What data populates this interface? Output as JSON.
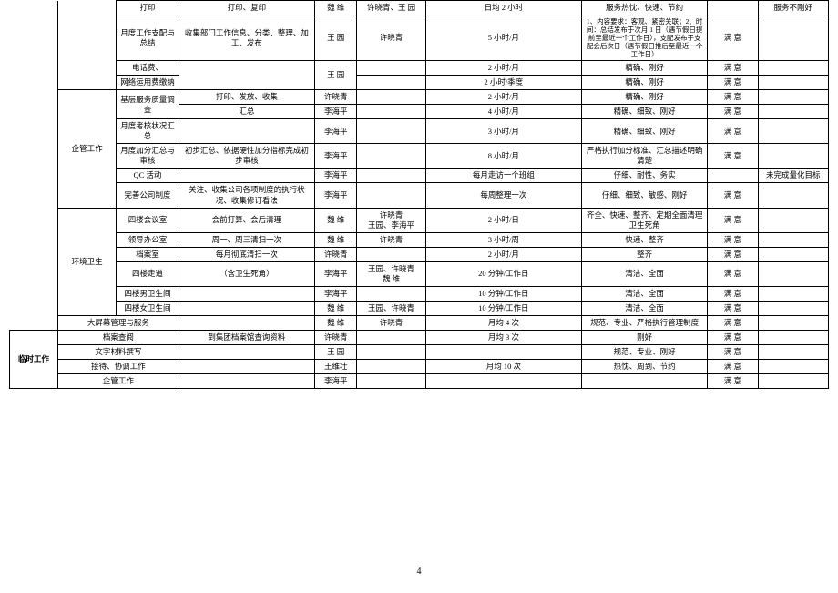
{
  "pageNumber": "4",
  "rows": [
    {
      "cat": "",
      "sub": "",
      "task": "打印",
      "desc": "打印、复印",
      "p1": "魏 维",
      "p2": "许晓青、王 园",
      "freq": "日均 2 小时",
      "req": "服务热忱、快速、节约",
      "eval": "",
      "note": "服务不刚好"
    },
    {
      "cat": "",
      "sub": "",
      "task": "月度工作支配与总结",
      "desc": "收集部门工作信息、分类、整理、加工、发布",
      "p1": "王 园",
      "p2": "许晓青",
      "freq": "5 小时/月",
      "req": "1、内容要求：客观、紧密关联；2、时间：总结发布于次月 1 日（遇节假日提前至最近一个工作日），支配发布于支配会后次日（遇节假日推后至最近一个工作日）",
      "eval": "满 意",
      "note": ""
    },
    {
      "cat": "",
      "sub": "",
      "task": "电话费、",
      "desc": "",
      "p1": "王 园",
      "p2": "",
      "freq": "2 小时/月",
      "req": "精确、刚好",
      "eval": "满 意",
      "note": ""
    },
    {
      "cat": "",
      "sub": "",
      "task": "网络运用费缴纳",
      "desc": "",
      "p1": "",
      "p2": "",
      "freq": "2 小时/季度",
      "req": "精确、刚好",
      "eval": "满 意",
      "note": ""
    },
    {
      "cat": "",
      "sub": "企管工作",
      "task": "基层服务质量调查",
      "desc": "打印、发放、收集",
      "p1": "许晓青",
      "p2": "",
      "freq": "2 小时/月",
      "req": "精确、刚好",
      "eval": "满 意",
      "note": ""
    },
    {
      "cat": "",
      "sub": "",
      "task": "",
      "desc": "汇总",
      "p1": "李海平",
      "p2": "",
      "freq": "4 小时/月",
      "req": "精确、细致、刚好",
      "eval": "满 意",
      "note": ""
    },
    {
      "cat": "",
      "sub": "",
      "task": "月度考核状况汇总",
      "desc": "",
      "p1": "李海平",
      "p2": "",
      "freq": "3 小时/月",
      "req": "精确、细致、刚好",
      "eval": "满 意",
      "note": ""
    },
    {
      "cat": "",
      "sub": "",
      "task": "月度加分汇总与审核",
      "desc": "初步汇总、依据硬性加分指标完成初步审核",
      "p1": "李海平",
      "p2": "",
      "freq": "8 小时/月",
      "req": "严格执行加分标准、汇总描述明确清楚",
      "eval": "满 意",
      "note": ""
    },
    {
      "cat": "",
      "sub": "",
      "task": "QC 活动",
      "desc": "",
      "p1": "李海平",
      "p2": "",
      "freq": "每月走访一个班组",
      "req": "仔细、耐性、务实",
      "eval": "",
      "note": "未完成量化目标"
    },
    {
      "cat": "",
      "sub": "",
      "task": "完善公司制度",
      "desc": "关注、收集公司各项制度的执行状况、收集修订看法",
      "p1": "李海平",
      "p2": "",
      "freq": "每周整理一次",
      "req": "仔细、细致、敏感、刚好",
      "eval": "满 意",
      "note": ""
    },
    {
      "cat": "",
      "sub": "环境卫生",
      "task": "四楼会议室",
      "desc": "会前打算、会后清理",
      "p1": "魏 维",
      "p2": "许晓青\n王园、李海平",
      "freq": "2 小时/日",
      "req": "齐全、快速、整齐、定期全面清理卫生死角",
      "eval": "满 意",
      "note": ""
    },
    {
      "cat": "",
      "sub": "",
      "task": "领导办公室",
      "desc": "周一、周三清扫一次",
      "p1": "魏 维",
      "p2": "许晓青",
      "freq": "3 小时/周",
      "req": "快速、整齐",
      "eval": "满 意",
      "note": ""
    },
    {
      "cat": "",
      "sub": "",
      "task": "档案室",
      "desc": "每月彻底清扫一次",
      "p1": "许晓青",
      "p2": "",
      "freq": "2 小时/月",
      "req": "整齐",
      "eval": "满 意",
      "note": ""
    },
    {
      "cat": "",
      "sub": "",
      "task": "四楼走道",
      "desc": "（含卫生死角）",
      "p1": "李海平",
      "p2": "王园、许晓青\n魏 维",
      "freq": "20 分钟/工作日",
      "req": "清洁、全面",
      "eval": "满 意",
      "note": ""
    },
    {
      "cat": "",
      "sub": "",
      "task": "四楼男卫生间",
      "desc": "",
      "p1": "李海平",
      "p2": "",
      "freq": "10 分钟/工作日",
      "req": "清洁、全面",
      "eval": "满 意",
      "note": ""
    },
    {
      "cat": "",
      "sub": "",
      "task": "四楼女卫生间",
      "desc": "",
      "p1": "魏 维",
      "p2": "王园、许晓青",
      "freq": "10 分钟/工作日",
      "req": "清洁、全面",
      "eval": "满 意",
      "note": ""
    },
    {
      "cat": "",
      "sub": "大屏幕管理与服务",
      "task": "",
      "desc": "",
      "p1": "魏 维",
      "p2": "许晓青",
      "freq": "月均 4 次",
      "req": "规范、专业、严格执行管理制度",
      "eval": "满 意",
      "note": ""
    },
    {
      "cat": "临时工作",
      "sub": "档案查阅",
      "task": "",
      "desc": "到集团档案馆查询资料",
      "p1": "许晓青",
      "p2": "",
      "freq": "月均 3 次",
      "req": "刚好",
      "eval": "满 意",
      "note": ""
    },
    {
      "cat": "",
      "sub": "文字材料撰写",
      "task": "",
      "desc": "",
      "p1": "王 园",
      "p2": "",
      "freq": "",
      "req": "规范、专业、刚好",
      "eval": "满 意",
      "note": ""
    },
    {
      "cat": "",
      "sub": "接待、协调工作",
      "task": "",
      "desc": "",
      "p1": "王维壮",
      "p2": "",
      "freq": "月均 10 次",
      "req": "热忱、周到、节约",
      "eval": "满 意",
      "note": ""
    },
    {
      "cat": "",
      "sub": "企管工作",
      "task": "",
      "desc": "",
      "p1": "李海平",
      "p2": "",
      "freq": "",
      "req": "",
      "eval": "满 意",
      "note": ""
    }
  ]
}
